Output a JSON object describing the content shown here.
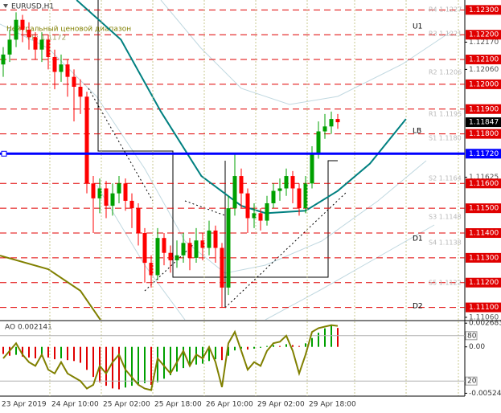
{
  "chart_data": {
    "type": "candlestick",
    "title": "EURUSD,H1",
    "subtitle": "Нейтральный ценовой диапазон",
    "note": "PP: 1.1172",
    "categories": [
      "23 Apr 2019",
      null,
      null,
      null,
      null,
      null,
      null,
      null,
      "24 Apr 10:00",
      null,
      null,
      null,
      null,
      null,
      null,
      null,
      "25 Apr 02:00",
      null,
      null,
      null,
      null,
      null,
      null,
      null,
      "25 Apr 18:00",
      null,
      null,
      null,
      null,
      null,
      null,
      null,
      "26 Apr 10:00",
      null,
      null,
      null,
      null,
      null,
      null,
      null,
      "29 Apr 02:00",
      null,
      null,
      null,
      null,
      null,
      null,
      null,
      "29 Apr 18:00",
      null,
      null,
      null,
      null
    ],
    "open": [
      1.1208,
      1.1212,
      1.1218,
      1.1226,
      1.1222,
      1.1219,
      1.1214,
      1.1218,
      1.1211,
      1.1205,
      1.1208,
      1.1203,
      1.1199,
      1.1195,
      1.116,
      1.1154,
      1.1158,
      1.1151,
      1.1156,
      1.116,
      1.1153,
      1.115,
      1.114,
      1.1128,
      1.1123,
      1.1138,
      1.1132,
      1.1129,
      1.1131,
      1.1136,
      1.113,
      1.1137,
      1.1134,
      1.1141,
      1.1134,
      1.1118,
      1.115,
      1.1163,
      1.1156,
      1.1146,
      1.1148,
      1.1145,
      1.1152,
      1.1157,
      1.1158,
      1.1163,
      1.1158,
      1.115,
      1.116,
      1.1172,
      1.1181,
      1.1183,
      1.1186
    ],
    "high": [
      1.1215,
      1.1222,
      1.1229,
      1.1228,
      1.1225,
      1.1221,
      1.1221,
      1.122,
      1.1214,
      1.1212,
      1.121,
      1.1206,
      1.1202,
      1.1197,
      1.1163,
      1.1162,
      1.1161,
      1.116,
      1.1163,
      1.1162,
      1.1156,
      1.1152,
      1.1142,
      1.1131,
      1.1142,
      1.114,
      1.1135,
      1.1137,
      1.114,
      1.1138,
      1.1142,
      1.114,
      1.1145,
      1.1143,
      1.1136,
      1.1155,
      1.1172,
      1.1166,
      1.1158,
      1.1152,
      1.115,
      1.1155,
      1.116,
      1.1162,
      1.1166,
      1.1165,
      1.116,
      1.1163,
      1.1175,
      1.1185,
      1.1188,
      1.1189,
      1.1188
    ],
    "low": [
      1.1203,
      1.1209,
      1.1215,
      1.1217,
      1.1214,
      1.121,
      1.1209,
      1.1206,
      1.1198,
      1.1201,
      1.1195,
      1.1185,
      1.1188,
      1.1156,
      1.114,
      1.1148,
      1.1146,
      1.1147,
      1.1152,
      1.1149,
      1.1142,
      1.1135,
      1.112,
      1.1118,
      1.1121,
      1.1127,
      1.1124,
      1.1126,
      1.1128,
      1.1125,
      1.1128,
      1.1129,
      1.1131,
      1.1128,
      1.111,
      1.1115,
      1.1147,
      1.115,
      1.114,
      1.1142,
      1.1141,
      1.1143,
      1.115,
      1.1153,
      1.1155,
      1.1152,
      1.1147,
      1.1148,
      1.1158,
      1.117,
      1.1178,
      1.118,
      1.1182
    ],
    "close": [
      1.1212,
      1.1218,
      1.1226,
      1.1222,
      1.1219,
      1.1214,
      1.1218,
      1.1211,
      1.1205,
      1.1208,
      1.1203,
      1.1199,
      1.1195,
      1.116,
      1.1154,
      1.1158,
      1.1151,
      1.1156,
      1.116,
      1.1153,
      1.115,
      1.114,
      1.1128,
      1.1123,
      1.1138,
      1.1132,
      1.1129,
      1.1131,
      1.1136,
      1.113,
      1.1137,
      1.1134,
      1.1141,
      1.1134,
      1.1118,
      1.115,
      1.1163,
      1.1156,
      1.1146,
      1.1148,
      1.1145,
      1.1152,
      1.1157,
      1.1158,
      1.1163,
      1.1158,
      1.115,
      1.116,
      1.1172,
      1.1181,
      1.1183,
      1.1186,
      1.11847
    ],
    "up_color": "#00a000",
    "down_color": "#ff0000",
    "ylim": [
      1.1105,
      1.1234
    ],
    "yticks": [
      {
        "value": 1.1217,
        "label": "1.12170"
      },
      {
        "value": 1.1206,
        "label": "1.12060"
      },
      {
        "value": 1.11625,
        "label": "1.11625"
      },
      {
        "value": 1.1106,
        "label": "1.11060"
      }
    ],
    "levels": [
      {
        "value": 1.123,
        "label": "1.12300"
      },
      {
        "value": 1.122,
        "label": "1.12200"
      },
      {
        "value": 1.121,
        "label": "1.12100"
      },
      {
        "value": 1.12,
        "label": "1.12000"
      },
      {
        "value": 1.119,
        "label": "1.11900"
      },
      {
        "value": 1.118,
        "label": "1.11800"
      },
      {
        "value": 1.116,
        "label": "1.11600"
      },
      {
        "value": 1.115,
        "label": "1.11500"
      },
      {
        "value": 1.114,
        "label": "1.11400"
      },
      {
        "value": 1.113,
        "label": "1.11300"
      },
      {
        "value": 1.112,
        "label": "1.11200"
      },
      {
        "value": 1.111,
        "label": "1.11100"
      }
    ],
    "level_color": "#e00000",
    "support": {
      "value": 1.1172,
      "label": "1.11720",
      "color": "#0000ff"
    },
    "current": {
      "value": 1.11847,
      "label": "1.11847"
    },
    "lines": [
      {
        "color": "#008080",
        "x": [
          11.4,
          18.3,
          24.5,
          30.8,
          37,
          40.8,
          47,
          52,
          57,
          62.6
        ],
        "values": [
          1.1234,
          1.1218,
          1.1189,
          1.1163,
          1.1151,
          1.1148,
          1.1149,
          1.1157,
          1.1168,
          1.1186
        ]
      },
      {
        "color": "#808000",
        "x": [
          -0.5,
          7,
          12,
          15.1
        ],
        "values": [
          1.11309,
          1.11254,
          1.11167,
          1.1105
        ]
      }
    ],
    "annotations": [
      "U1",
      "LB",
      "D1",
      "D2"
    ],
    "pivots": [
      "R4 1.1227",
      "R3 1.1221",
      "R2 1.1206",
      "R1 1.1195",
      "S1 1.1180",
      "S2 1.1164",
      "S3 1.1148",
      "S4 1.1138",
      "S5 1.1122"
    ],
    "ao": {
      "label": "AO 0.002141",
      "values": [
        -0.0008,
        -0.001,
        -0.0009,
        -0.0011,
        -0.0012,
        -0.0013,
        -0.0011,
        -0.0012,
        -0.0014,
        -0.0013,
        -0.0015,
        -0.0016,
        -0.0018,
        -0.0026,
        -0.0034,
        -0.004,
        -0.0044,
        -0.0047,
        -0.0048,
        -0.0046,
        -0.0044,
        -0.0042,
        -0.0041,
        -0.0043,
        -0.004,
        -0.0036,
        -0.0032,
        -0.0028,
        -0.0024,
        -0.0022,
        -0.002,
        -0.0019,
        -0.0016,
        -0.0014,
        -0.0015,
        -0.001,
        -0.0004,
        -0.0002,
        -0.0003,
        -0.0002,
        -0.0001,
        0.0001,
        0.0002,
        0.0001,
        0.0003,
        0.0002,
        0.0001,
        0.0004,
        0.001,
        0.0016,
        0.0021,
        0.0024,
        0.002141
      ],
      "ylim": [
        -0.0053,
        0.0027
      ],
      "yticks": [
        0.002683,
        {
          "value": 0,
          "label": "0.00"
        },
        -0.005247
      ],
      "up_color": "#00a000",
      "down_color": "#e00000"
    },
    "stoch": {
      "values": [
        50,
        60,
        70,
        55,
        45,
        40,
        55,
        35,
        30,
        45,
        30,
        25,
        20,
        10,
        15,
        40,
        30,
        45,
        55,
        35,
        25,
        15,
        10,
        8,
        50,
        40,
        30,
        45,
        60,
        40,
        55,
        50,
        65,
        45,
        12,
        70,
        85,
        60,
        35,
        45,
        40,
        60,
        70,
        72,
        80,
        60,
        30,
        55,
        85,
        90,
        92,
        94,
        93
      ],
      "ylim": [
        0,
        100
      ],
      "yticks": [
        80,
        20
      ],
      "color": "#808000"
    }
  }
}
